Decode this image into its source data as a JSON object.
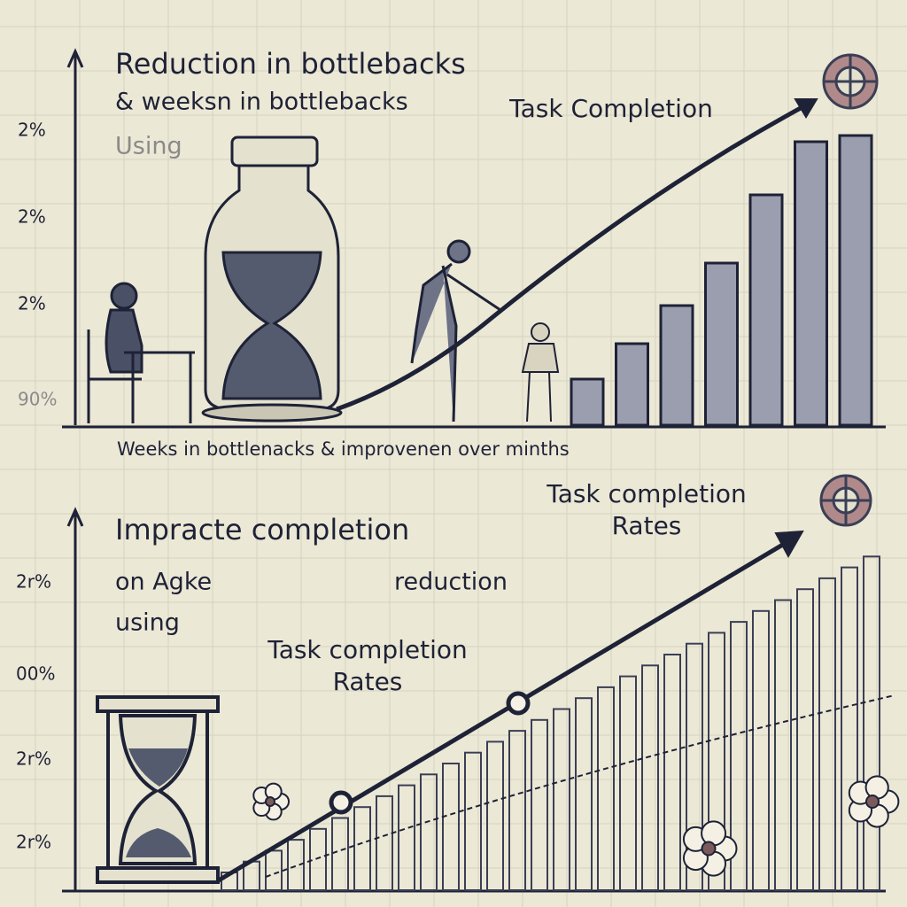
{
  "top_panel": {
    "title": "Reduction in bottlebacks",
    "subtitle": "&   weeksn in bottlebacks",
    "note": "Using",
    "label": "Task Completion",
    "y_labels": [
      "2%",
      "2%",
      "2%",
      "90%"
    ],
    "caption": "Weeks in bottlenacks & improvenen over minths"
  },
  "bottom_panel": {
    "title": "Impracte completion",
    "subtitle_left": "on Agke",
    "subtitle_right": "reduction",
    "note": "using",
    "label_top": "Task completion Rates",
    "label_mid": "Task completion Rates",
    "y_labels": [
      "2r%",
      "00%",
      "2r%",
      "2r%"
    ]
  }
}
